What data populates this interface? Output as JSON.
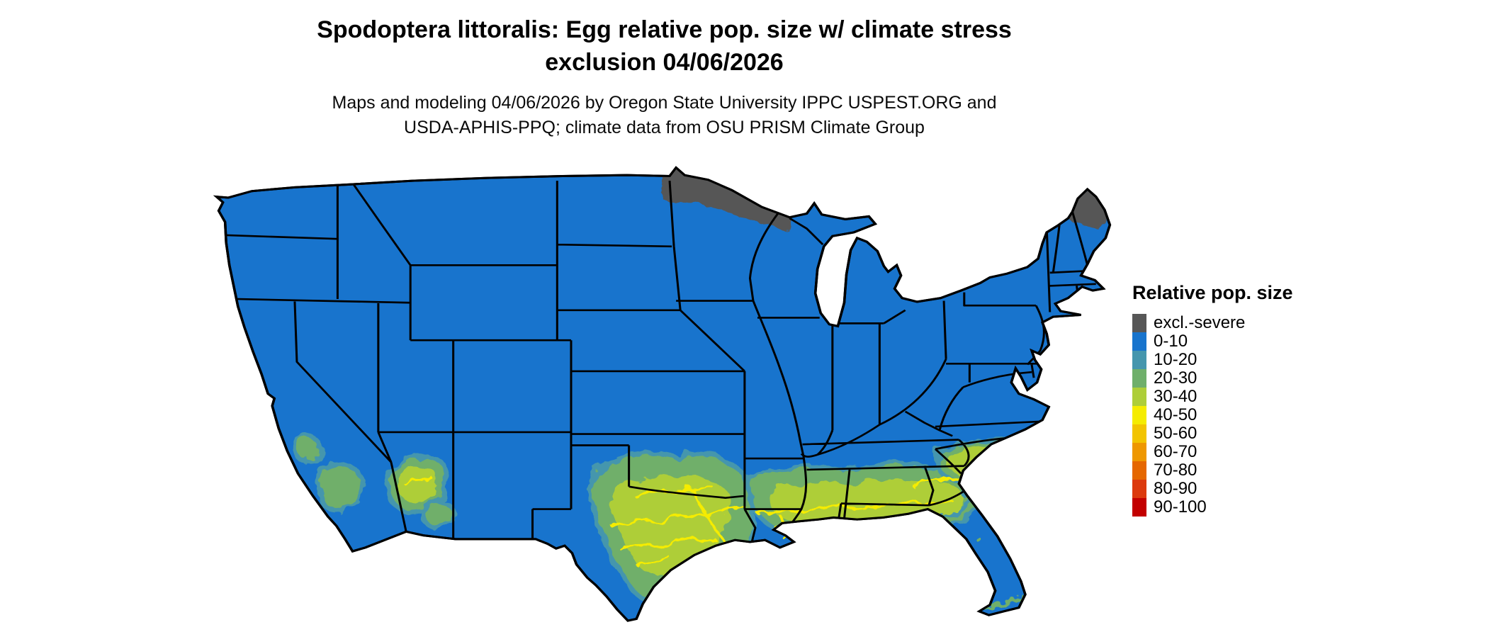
{
  "header": {
    "title_line1": "Spodoptera littoralis: Egg relative pop. size w/ climate stress",
    "title_line2": "exclusion 04/06/2026",
    "subtitle_line1": "Maps and modeling 04/06/2026 by Oregon State University IPPC USPEST.ORG and",
    "subtitle_line2": "USDA-APHIS-PPQ; climate data from OSU PRISM Climate Group"
  },
  "legend": {
    "title": "Relative pop. size",
    "items": [
      {
        "label": "excl.-severe",
        "color": "#575757"
      },
      {
        "label": "0-10",
        "color": "#1874CD"
      },
      {
        "label": "10-20",
        "color": "#4596AD"
      },
      {
        "label": "20-30",
        "color": "#6FAF6B"
      },
      {
        "label": "30-40",
        "color": "#AECE39"
      },
      {
        "label": "40-50",
        "color": "#F5EC00"
      },
      {
        "label": "50-60",
        "color": "#F2C400"
      },
      {
        "label": "60-70",
        "color": "#EE9700"
      },
      {
        "label": "70-80",
        "color": "#E56700"
      },
      {
        "label": "80-90",
        "color": "#DC3A0E"
      },
      {
        "label": "90-100",
        "color": "#C30000"
      }
    ]
  }
}
